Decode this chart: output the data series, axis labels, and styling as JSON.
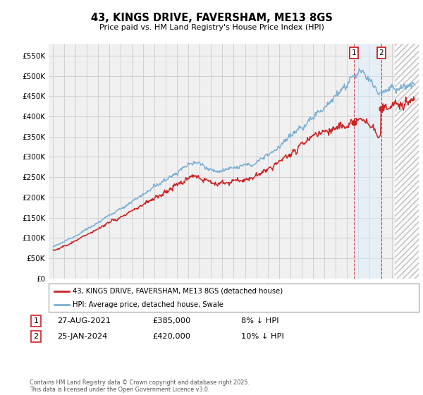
{
  "title": "43, KINGS DRIVE, FAVERSHAM, ME13 8GS",
  "subtitle": "Price paid vs. HM Land Registry's House Price Index (HPI)",
  "legend_label_red": "43, KINGS DRIVE, FAVERSHAM, ME13 8GS (detached house)",
  "legend_label_blue": "HPI: Average price, detached house, Swale",
  "annotation1_label": "1",
  "annotation1_date": "27-AUG-2021",
  "annotation1_price": "£385,000",
  "annotation1_hpi": "8% ↓ HPI",
  "annotation2_label": "2",
  "annotation2_date": "25-JAN-2024",
  "annotation2_price": "£420,000",
  "annotation2_hpi": "10% ↓ HPI",
  "footer": "Contains HM Land Registry data © Crown copyright and database right 2025.\nThis data is licensed under the Open Government Licence v3.0.",
  "ylim": [
    0,
    580000
  ],
  "yticks": [
    0,
    50000,
    100000,
    150000,
    200000,
    250000,
    300000,
    350000,
    400000,
    450000,
    500000,
    550000
  ],
  "background_color": "#f0f0f0",
  "grid_color": "#cccccc",
  "red_color": "#cc2222",
  "blue_color": "#7ab0d4",
  "sale1_year": 2021.65,
  "sale1_price": 385000,
  "sale2_year": 2024.07,
  "sale2_price": 420000,
  "xmin": 1994.6,
  "xmax": 2027.4,
  "future_start": 2025.3
}
